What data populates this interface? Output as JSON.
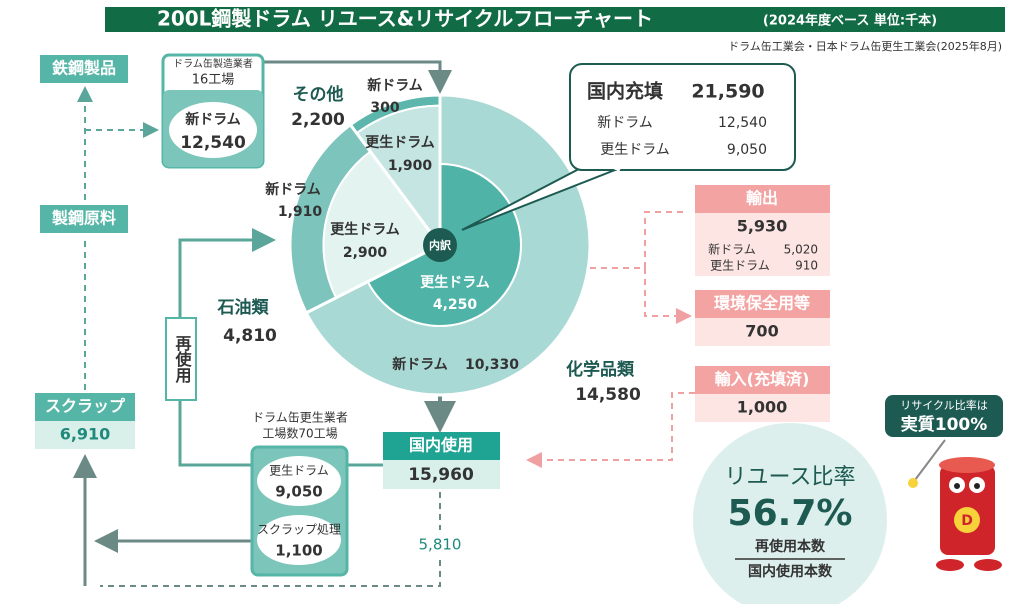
{
  "title": "200L鋼製ドラム リユース&リサイクルフローチャート",
  "subtitle": "(2024年度ベース 単位:千本)",
  "source": "ドラム缶工業会・日本ドラム缶更生工業会(2025年8月)",
  "steel_products": "鉄鋼製品",
  "steel_material": "製鋼原料",
  "scrap": {
    "label": "スクラップ",
    "value": "6,910"
  },
  "manufacturers": {
    "label": "ドラム缶製造業者",
    "count": "16工場",
    "item": "新ドラム",
    "value": "12,540"
  },
  "donut": {
    "center_label": "内訳",
    "segments": [
      {
        "name": "化学品類",
        "total": 14580,
        "total_label": "14,580",
        "parts": [
          {
            "name": "新ドラム",
            "value": 10330,
            "value_label": "10,330"
          },
          {
            "name": "更生ドラム",
            "value": 4250,
            "value_label": "4,250"
          }
        ]
      },
      {
        "name": "石油類",
        "total": 4810,
        "total_label": "4,810",
        "parts": [
          {
            "name": "新ドラム",
            "value": 1910,
            "value_label": "1,910"
          },
          {
            "name": "更生ドラム",
            "value": 2900,
            "value_label": "2,900"
          }
        ]
      },
      {
        "name": "その他",
        "total": 2200,
        "total_label": "2,200",
        "parts": [
          {
            "name": "新ドラム",
            "value": 300,
            "value_label": "300"
          },
          {
            "name": "更生ドラム",
            "value": 1900,
            "value_label": "1,900"
          }
        ]
      }
    ]
  },
  "domestic_fill": {
    "label": "国内充填",
    "value": "21,590",
    "rows": [
      {
        "name": "新ドラム",
        "value": "12,540"
      },
      {
        "name": "更生ドラム",
        "value": "9,050"
      }
    ]
  },
  "export": {
    "label": "輸出",
    "value": "5,930",
    "rows": [
      {
        "name": "新ドラム",
        "value": "5,020"
      },
      {
        "name": "更生ドラム",
        "value": "910"
      }
    ]
  },
  "environment": {
    "label": "環境保全用等",
    "value": "700"
  },
  "import": {
    "label": "輸入(充填済)",
    "value": "1,000"
  },
  "domestic_use": {
    "label": "国内使用",
    "value": "15,960"
  },
  "reuse_label": "再使用",
  "recyclers": {
    "label": "ドラム缶更生業者",
    "count": "工場数70工場",
    "items": [
      {
        "name": "更生ドラム",
        "value": "9,050"
      },
      {
        "name": "スクラップ処理",
        "value": "1,100"
      }
    ]
  },
  "scrap_flow": "5,810",
  "reuse_rate": {
    "label": "リユース比率",
    "value": "56.7%",
    "numerator": "再使用本数",
    "denominator": "国内使用本数"
  },
  "mascot": {
    "line1": "リサイクル比率は",
    "line2": "実質100%"
  }
}
